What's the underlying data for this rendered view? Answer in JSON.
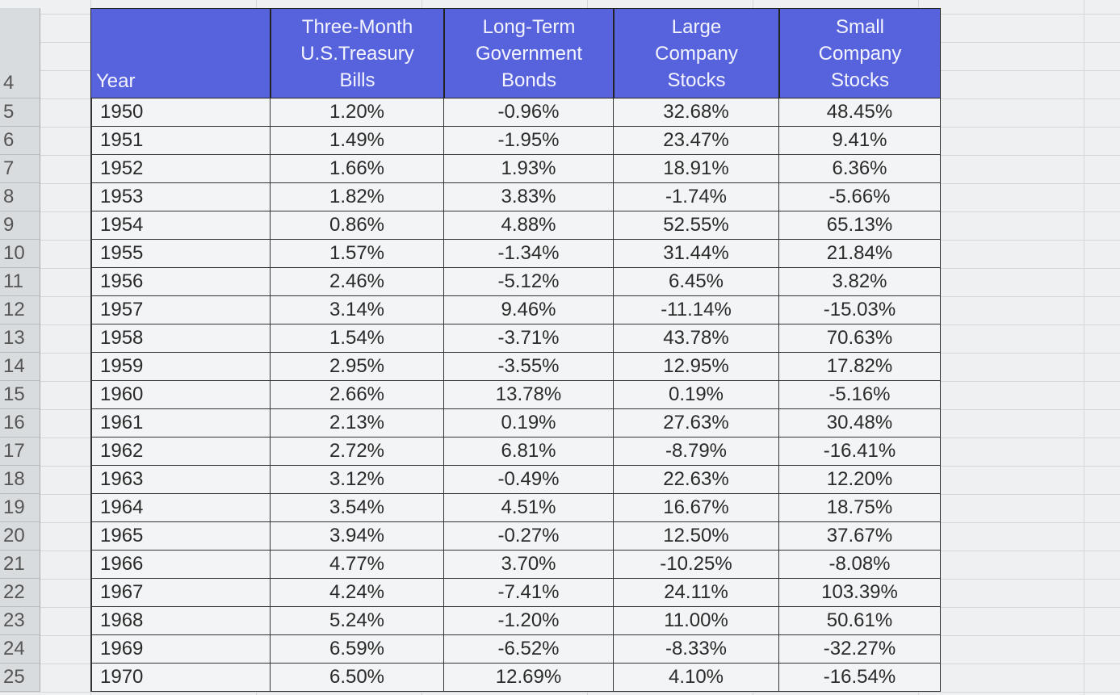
{
  "row_numbers": [
    4,
    5,
    6,
    7,
    8,
    9,
    10,
    11,
    12,
    13,
    14,
    15,
    16,
    17,
    18,
    19,
    20,
    21,
    22,
    23,
    24,
    25
  ],
  "table": {
    "header": [
      "Year",
      "Three-Month U.S.Treasury Bills",
      "Long-Term Government Bonds",
      "Large Company Stocks",
      "Small Company Stocks"
    ],
    "rows": [
      [
        "1950",
        "1.20%",
        "-0.96%",
        "32.68%",
        "48.45%"
      ],
      [
        "1951",
        "1.49%",
        "-1.95%",
        "23.47%",
        "9.41%"
      ],
      [
        "1952",
        "1.66%",
        "1.93%",
        "18.91%",
        "6.36%"
      ],
      [
        "1953",
        "1.82%",
        "3.83%",
        "-1.74%",
        "-5.66%"
      ],
      [
        "1954",
        "0.86%",
        "4.88%",
        "52.55%",
        "65.13%"
      ],
      [
        "1955",
        "1.57%",
        "-1.34%",
        "31.44%",
        "21.84%"
      ],
      [
        "1956",
        "2.46%",
        "-5.12%",
        "6.45%",
        "3.82%"
      ],
      [
        "1957",
        "3.14%",
        "9.46%",
        "-11.14%",
        "-15.03%"
      ],
      [
        "1958",
        "1.54%",
        "-3.71%",
        "43.78%",
        "70.63%"
      ],
      [
        "1959",
        "2.95%",
        "-3.55%",
        "12.95%",
        "17.82%"
      ],
      [
        "1960",
        "2.66%",
        "13.78%",
        "0.19%",
        "-5.16%"
      ],
      [
        "1961",
        "2.13%",
        "0.19%",
        "27.63%",
        "30.48%"
      ],
      [
        "1962",
        "2.72%",
        "6.81%",
        "-8.79%",
        "-16.41%"
      ],
      [
        "1963",
        "3.12%",
        "-0.49%",
        "22.63%",
        "12.20%"
      ],
      [
        "1964",
        "3.54%",
        "4.51%",
        "16.67%",
        "18.75%"
      ],
      [
        "1965",
        "3.94%",
        "-0.27%",
        "12.50%",
        "37.67%"
      ],
      [
        "1966",
        "4.77%",
        "3.70%",
        "-10.25%",
        "-8.08%"
      ],
      [
        "1967",
        "4.24%",
        "-7.41%",
        "24.11%",
        "103.39%"
      ],
      [
        "1968",
        "5.24%",
        "-1.20%",
        "11.00%",
        "50.61%"
      ],
      [
        "1969",
        "6.59%",
        "-6.52%",
        "-8.33%",
        "-32.27%"
      ],
      [
        "1970",
        "6.50%",
        "12.69%",
        "4.10%",
        "-16.54%"
      ]
    ]
  }
}
